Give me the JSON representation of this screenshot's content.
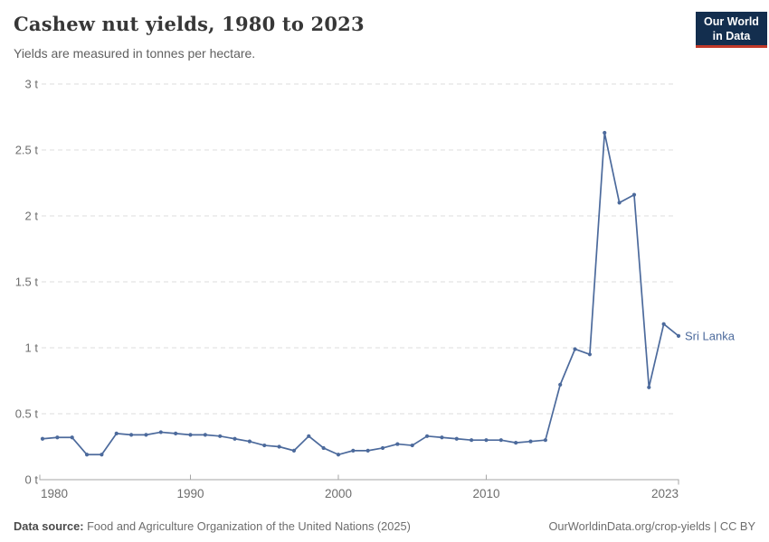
{
  "header": {
    "title": "Cashew nut yields, 1980 to 2023",
    "subtitle": "Yields are measured in tonnes per hectare.",
    "logo_line1": "Our World",
    "logo_line2": "in Data"
  },
  "footer": {
    "source_label": "Data source:",
    "source_text": "Food and Agriculture Organization of the United Nations (2025)",
    "credit": "OurWorldinData.org/crop-yields | CC BY"
  },
  "colors": {
    "line": "#4C6A9C",
    "grid": "#dedede",
    "axis": "#a6a6a6",
    "tick_text": "#6d6d6d",
    "logo_bg": "#132E4E",
    "logo_stripe": "#C13929"
  },
  "chart_data": {
    "type": "line",
    "title": "Cashew nut yields, 1980 to 2023",
    "subtitle": "Yields are measured in tonnes per hectare.",
    "unit": "tonnes per hectare",
    "xlim": [
      1980,
      2023
    ],
    "ylim": [
      0,
      3
    ],
    "grid": "horizontal-dashed",
    "legend_position": "end-of-line-label",
    "x_ticks": [
      1980,
      1990,
      2000,
      2010,
      2023
    ],
    "y_ticks": [
      0,
      0.5,
      1,
      1.5,
      2,
      2.5,
      3
    ],
    "y_tick_labels": [
      "0 t",
      "0.5 t",
      "1 t",
      "1.5 t",
      "2 t",
      "2.5 t",
      "3 t"
    ],
    "series": [
      {
        "name": "Sri Lanka",
        "color": "#4C6A9C",
        "x": [
          1980,
          1981,
          1982,
          1983,
          1984,
          1985,
          1986,
          1987,
          1988,
          1989,
          1990,
          1991,
          1992,
          1993,
          1994,
          1995,
          1996,
          1997,
          1998,
          1999,
          2000,
          2001,
          2002,
          2003,
          2004,
          2005,
          2006,
          2007,
          2008,
          2009,
          2010,
          2011,
          2012,
          2013,
          2014,
          2015,
          2016,
          2017,
          2018,
          2019,
          2020,
          2021,
          2022,
          2023
        ],
        "values": [
          0.31,
          0.32,
          0.32,
          0.19,
          0.19,
          0.35,
          0.34,
          0.34,
          0.36,
          0.35,
          0.34,
          0.34,
          0.33,
          0.31,
          0.29,
          0.26,
          0.25,
          0.22,
          0.33,
          0.24,
          0.19,
          0.22,
          0.22,
          0.24,
          0.27,
          0.26,
          0.33,
          0.32,
          0.31,
          0.3,
          0.3,
          0.3,
          0.28,
          0.29,
          0.3,
          0.72,
          0.99,
          0.95,
          2.63,
          2.1,
          2.16,
          0.7,
          1.18,
          1.09
        ]
      }
    ]
  }
}
